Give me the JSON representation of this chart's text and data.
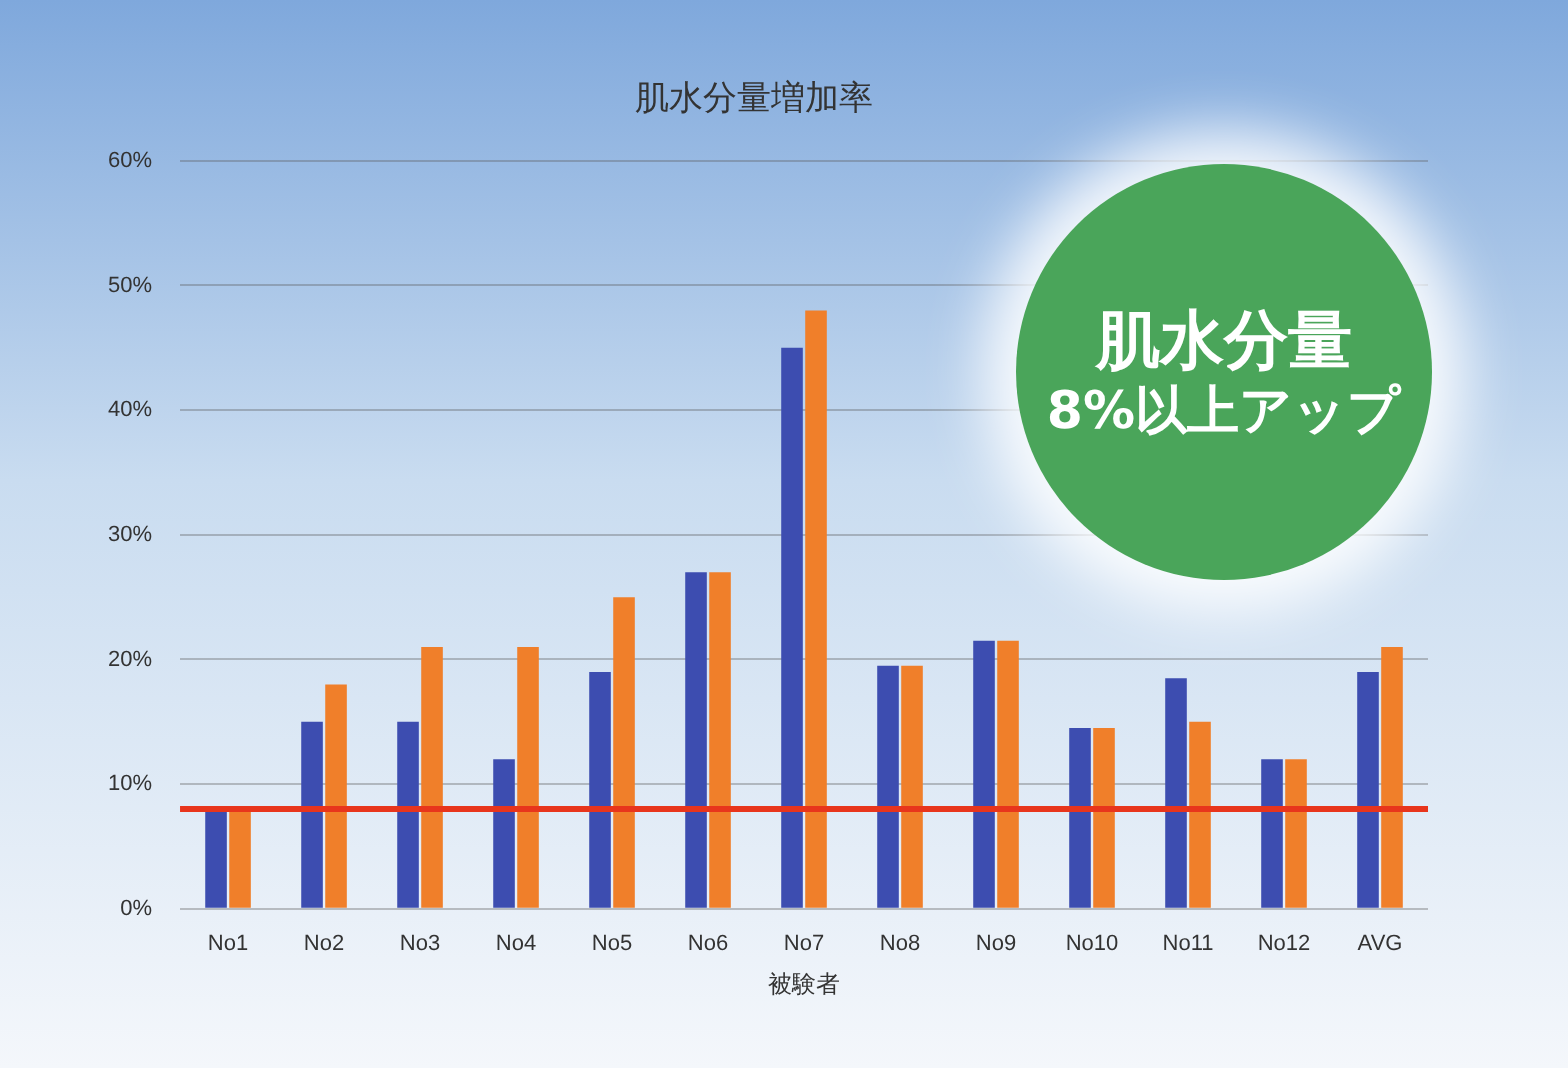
{
  "chart_data": {
    "type": "bar",
    "title": "肌水分量増加率",
    "xlabel": "被験者",
    "categories": [
      "No1",
      "No2",
      "No3",
      "No4",
      "No5",
      "No6",
      "No7",
      "No8",
      "No9",
      "No10",
      "No11",
      "No12",
      "AVG"
    ],
    "series": [
      {
        "color": "#3d4db0",
        "values": [
          8,
          15,
          15,
          12,
          19,
          27,
          45,
          19.5,
          21.5,
          14.5,
          18.5,
          12,
          19
        ]
      },
      {
        "color": "#f07f2a",
        "values": [
          8,
          18,
          21,
          21,
          25,
          27,
          48,
          19.5,
          21.5,
          14.5,
          15,
          12,
          21
        ]
      }
    ],
    "ylim": [
      0,
      60
    ],
    "yticks": [
      {
        "value": 0,
        "label": "0%"
      },
      {
        "value": 10,
        "label": "10%"
      },
      {
        "value": 20,
        "label": "20%"
      },
      {
        "value": 30,
        "label": "30%"
      },
      {
        "value": 40,
        "label": "40%"
      },
      {
        "value": 50,
        "label": "50%"
      },
      {
        "value": 60,
        "label": "60%"
      }
    ],
    "ref_lines": [
      {
        "axis": "y",
        "value": 8,
        "color": "#e8351c"
      }
    ],
    "annotations": [
      "肌水分量",
      "8%以上アップ"
    ],
    "grid": "y",
    "legend": false
  }
}
